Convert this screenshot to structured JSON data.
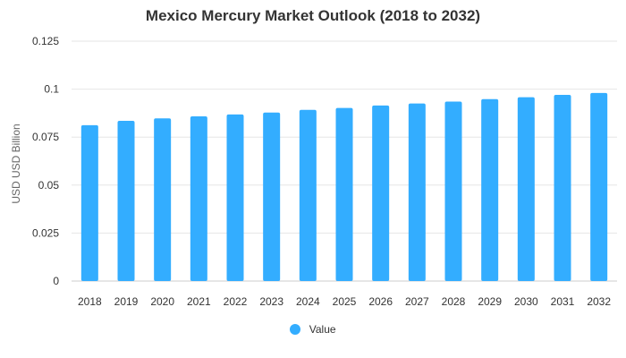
{
  "chart_data": {
    "type": "bar",
    "title": "Mexico Mercury Market Outlook (2018 to 2032)",
    "xlabel": "",
    "ylabel": "USD USD Billion",
    "categories": [
      "2018",
      "2019",
      "2020",
      "2021",
      "2022",
      "2023",
      "2024",
      "2025",
      "2026",
      "2027",
      "2028",
      "2029",
      "2030",
      "2031",
      "2032"
    ],
    "series": [
      {
        "name": "Value",
        "values": [
          0.0812,
          0.0835,
          0.0848,
          0.0858,
          0.0868,
          0.0878,
          0.0892,
          0.0902,
          0.0915,
          0.0925,
          0.0935,
          0.0948,
          0.0958,
          0.097,
          0.098
        ]
      }
    ],
    "ylim": [
      0,
      0.125
    ],
    "yticks": [
      "0",
      "0.025",
      "0.05",
      "0.075",
      "0.1",
      "0.125"
    ],
    "ytick_values": [
      0,
      0.025,
      0.05,
      0.075,
      0.1,
      0.125
    ],
    "grid": true,
    "legend_position": "bottom",
    "colors": {
      "bar": "#33adff",
      "grid": "#e6e6e6",
      "axis": "#cccccc"
    }
  }
}
